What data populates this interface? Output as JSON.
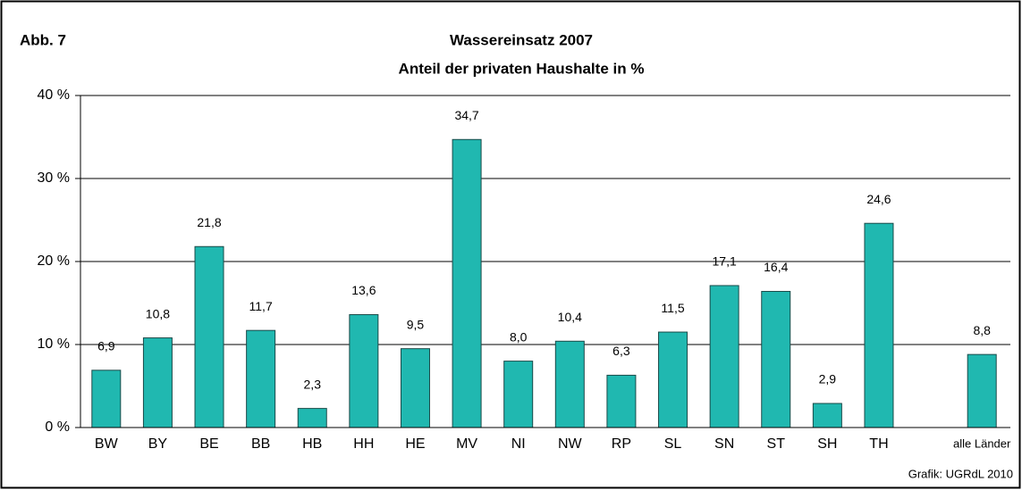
{
  "chart_data": {
    "type": "bar",
    "label": "Abb. 7",
    "title": "Wassereinsatz 2007",
    "subtitle": "Anteil der privaten Haushalte in %",
    "source": "Grafik: UGRdL 2010",
    "categories": [
      "BW",
      "BY",
      "BE",
      "BB",
      "HB",
      "HH",
      "HE",
      "MV",
      "NI",
      "NW",
      "RP",
      "SL",
      "SN",
      "ST",
      "SH",
      "TH",
      null,
      "alle Länder"
    ],
    "values": [
      6.9,
      10.8,
      21.8,
      11.7,
      2.3,
      13.6,
      9.5,
      34.7,
      8.0,
      10.4,
      6.3,
      11.5,
      17.1,
      16.4,
      2.9,
      24.6,
      null,
      8.8
    ],
    "value_labels": [
      "6,9",
      "10,8",
      "21,8",
      "11,7",
      "2,3",
      "13,6",
      "9,5",
      "34,7",
      "8,0",
      "10,4",
      "6,3",
      "11,5",
      "17,1",
      "16,4",
      "2,9",
      "24,6",
      null,
      "8,8"
    ],
    "color": "#20b8b0",
    "ylim": [
      0,
      40
    ],
    "yticks": [
      {
        "value": 0,
        "label": "0 %"
      },
      {
        "value": 10,
        "label": "10 %"
      },
      {
        "value": 20,
        "label": "20 %"
      },
      {
        "value": 30,
        "label": "30 %"
      },
      {
        "value": 40,
        "label": "40 %"
      }
    ],
    "grid": true
  }
}
